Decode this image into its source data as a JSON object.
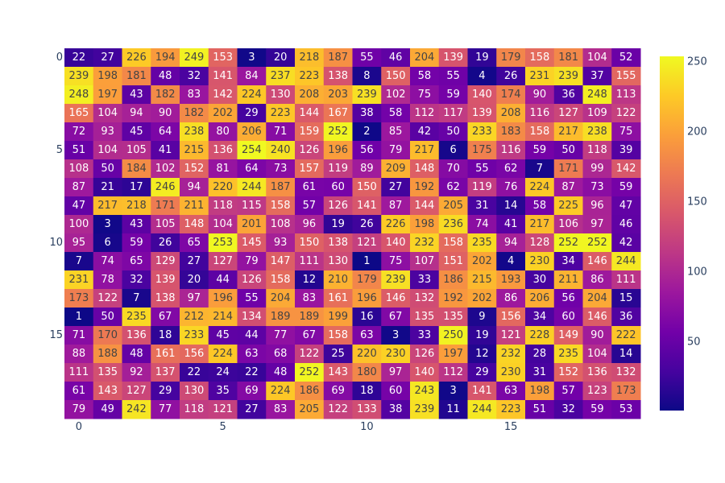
{
  "chart_data": {
    "type": "heatmap",
    "title": "",
    "xlabel": "",
    "ylabel": "",
    "x_tick_labels": [
      {
        "col": 0,
        "label": "0"
      },
      {
        "col": 5,
        "label": "5"
      },
      {
        "col": 10,
        "label": "10"
      },
      {
        "col": 15,
        "label": "15"
      }
    ],
    "y_tick_labels": [
      {
        "row": 0,
        "label": "0"
      },
      {
        "row": 5,
        "label": "5"
      },
      {
        "row": 10,
        "label": "10"
      },
      {
        "row": 15,
        "label": "15"
      }
    ],
    "colorbar": {
      "range": [
        1,
        254
      ],
      "ticks": [
        "50",
        "100",
        "150",
        "200",
        "250"
      ],
      "tick_values": [
        50,
        100,
        150,
        200,
        250
      ]
    },
    "colorscale": "plasma",
    "colorscale_stops": [
      "#0d0887",
      "#46039f",
      "#7201a8",
      "#9c179e",
      "#bd3786",
      "#d8576b",
      "#ed7953",
      "#fb9f3a",
      "#fdca26",
      "#f0f921"
    ],
    "z": [
      [
        22,
        27,
        226,
        194,
        249,
        153,
        3,
        20,
        218,
        187,
        55,
        46,
        204,
        139,
        19,
        179,
        158,
        181,
        104,
        52
      ],
      [
        239,
        198,
        181,
        48,
        32,
        141,
        84,
        237,
        223,
        138,
        8,
        150,
        58,
        55,
        4,
        26,
        231,
        239,
        37,
        155
      ],
      [
        248,
        197,
        43,
        182,
        83,
        142,
        224,
        130,
        208,
        203,
        239,
        102,
        75,
        59,
        140,
        174,
        90,
        36,
        248,
        113
      ],
      [
        165,
        104,
        94,
        90,
        182,
        202,
        29,
        223,
        144,
        167,
        38,
        58,
        112,
        117,
        139,
        208,
        116,
        127,
        109,
        122
      ],
      [
        72,
        93,
        45,
        64,
        238,
        80,
        206,
        71,
        159,
        252,
        2,
        85,
        42,
        50,
        233,
        183,
        158,
        217,
        238,
        75
      ],
      [
        51,
        104,
        105,
        41,
        215,
        136,
        254,
        240,
        126,
        196,
        56,
        79,
        217,
        6,
        175,
        116,
        59,
        50,
        118,
        39
      ],
      [
        108,
        50,
        184,
        102,
        152,
        81,
        64,
        73,
        157,
        119,
        89,
        209,
        148,
        70,
        55,
        62,
        7,
        171,
        99,
        142
      ],
      [
        87,
        21,
        17,
        246,
        94,
        220,
        244,
        187,
        61,
        60,
        150,
        27,
        192,
        62,
        119,
        76,
        224,
        87,
        73,
        59
      ],
      [
        47,
        217,
        218,
        171,
        211,
        118,
        115,
        158,
        57,
        126,
        141,
        87,
        144,
        205,
        31,
        14,
        58,
        225,
        96,
        47
      ],
      [
        100,
        3,
        43,
        105,
        148,
        104,
        201,
        108,
        96,
        19,
        26,
        226,
        198,
        236,
        74,
        41,
        217,
        106,
        97,
        46
      ],
      [
        95,
        6,
        59,
        26,
        65,
        253,
        145,
        93,
        150,
        138,
        121,
        140,
        232,
        158,
        235,
        94,
        128,
        252,
        252,
        42
      ],
      [
        7,
        74,
        65,
        129,
        27,
        127,
        79,
        147,
        111,
        130,
        1,
        75,
        107,
        151,
        202,
        4,
        230,
        34,
        146,
        244
      ],
      [
        231,
        78,
        32,
        139,
        20,
        44,
        126,
        158,
        12,
        210,
        179,
        239,
        33,
        186,
        215,
        193,
        30,
        211,
        86,
        111
      ],
      [
        173,
        122,
        7,
        138,
        97,
        196,
        55,
        204,
        83,
        161,
        196,
        146,
        132,
        192,
        202,
        86,
        206,
        56,
        204,
        15
      ],
      [
        1,
        50,
        235,
        67,
        212,
        214,
        134,
        189,
        189,
        199,
        16,
        67,
        135,
        135,
        9,
        156,
        34,
        60,
        146,
        36
      ],
      [
        71,
        170,
        136,
        18,
        233,
        45,
        44,
        77,
        67,
        158,
        63,
        3,
        33,
        250,
        19,
        121,
        228,
        149,
        90,
        222
      ],
      [
        88,
        188,
        48,
        161,
        156,
        224,
        63,
        68,
        122,
        25,
        220,
        230,
        126,
        197,
        12,
        232,
        28,
        235,
        104,
        14
      ],
      [
        111,
        135,
        92,
        137,
        22,
        24,
        22,
        48,
        252,
        143,
        180,
        97,
        140,
        112,
        29,
        230,
        31,
        152,
        136,
        132
      ],
      [
        61,
        143,
        127,
        29,
        130,
        35,
        69,
        224,
        186,
        69,
        18,
        60,
        243,
        3,
        141,
        63,
        198,
        57,
        123,
        173
      ],
      [
        79,
        49,
        242,
        77,
        118,
        121,
        27,
        83,
        205,
        122,
        133,
        38,
        239,
        11,
        244,
        223,
        51,
        32,
        59,
        53
      ]
    ]
  }
}
